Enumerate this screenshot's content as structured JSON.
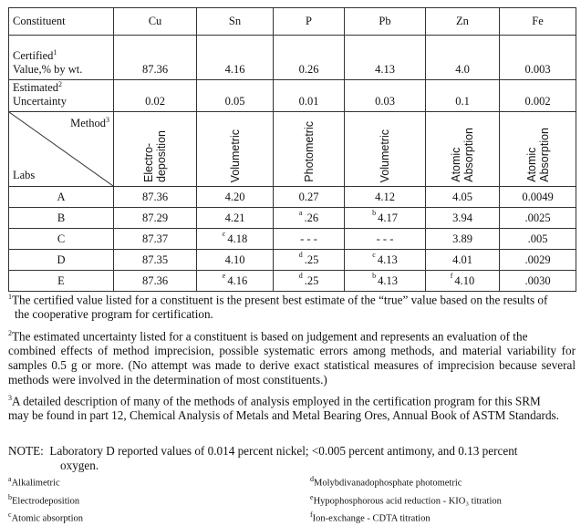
{
  "table": {
    "constituent_label": "Constituent",
    "columns": [
      "Cu",
      "Sn",
      "P",
      "Pb",
      "Zn",
      "Fe"
    ],
    "certified_label_1": "Certified",
    "certified_label_2": "Value,% by wt.",
    "certified_marker": "1",
    "certified": [
      "87.36",
      "4.16",
      "0.26",
      "4.13",
      "4.0",
      "0.003"
    ],
    "uncertainty_label_1": "Estimated",
    "uncertainty_label_2": "Uncertainty",
    "uncertainty_marker": "2",
    "uncertainty": [
      "0.02",
      "0.05",
      "0.01",
      "0.03",
      "0.1",
      "0.002"
    ],
    "method_label": "Method",
    "method_marker": "3",
    "labs_label": "Labs",
    "methods": [
      [
        "Electro-",
        "deposition"
      ],
      [
        "Volumetric"
      ],
      [
        "Photometric"
      ],
      [
        "Volumetric"
      ],
      [
        "Atomic",
        "Absorption"
      ],
      [
        "Atomic",
        "Absorption"
      ]
    ],
    "labs": [
      {
        "lab": "A",
        "values": [
          {
            "v": "87.36"
          },
          {
            "v": "4.20"
          },
          {
            "v": "0.27"
          },
          {
            "v": "4.12"
          },
          {
            "v": "4.05"
          },
          {
            "v": "0.0049"
          }
        ]
      },
      {
        "lab": "B",
        "values": [
          {
            "v": "87.29"
          },
          {
            "v": "4.21"
          },
          {
            "m": "a",
            "v": ".26"
          },
          {
            "m": "b",
            "v": "4.17"
          },
          {
            "v": "3.94"
          },
          {
            "v": ".0025"
          }
        ]
      },
      {
        "lab": "C",
        "values": [
          {
            "v": "87.37"
          },
          {
            "m": "c",
            "v": "4.18"
          },
          {
            "v": "- - -"
          },
          {
            "v": "- - -"
          },
          {
            "v": "3.89"
          },
          {
            "v": ".005"
          }
        ]
      },
      {
        "lab": "D",
        "values": [
          {
            "v": "87.35"
          },
          {
            "v": "4.10"
          },
          {
            "m": "d",
            "v": ".25"
          },
          {
            "m": "c",
            "v": "4.13"
          },
          {
            "v": "4.01"
          },
          {
            "v": ".0029"
          }
        ]
      },
      {
        "lab": "E",
        "values": [
          {
            "v": "87.36"
          },
          {
            "m": "e",
            "v": "4.16"
          },
          {
            "m": "d",
            "v": ".25"
          },
          {
            "m": "b",
            "v": "4.13"
          },
          {
            "m": "f",
            "v": "4.10"
          },
          {
            "v": ".0030"
          }
        ]
      }
    ]
  },
  "footnotes": [
    {
      "marker": "1",
      "line1": "The certified value listed for a constituent is the present best estimate of the “true” value based on the results of",
      "rest": "the cooperative program for certification."
    },
    {
      "marker": "2",
      "line1": "The estimated uncertainty listed for a constituent is based on judgement and represents an evaluation of the",
      "rest": "combined effects of method imprecision, possible systematic errors among methods, and material variability for samples 0.5 g or more. (No attempt was made to derive exact statistical measures of imprecision because several methods were involved in the determination of most constituents.)"
    },
    {
      "marker": "3",
      "line1": "A detailed description of many of the methods of analysis employed in the certification program for this SRM",
      "rest": "may be found in part 12, Chemical Analysis of Metals and Metal Bearing Ores, Annual Book of ASTM Standards."
    }
  ],
  "note": {
    "label": "NOTE:",
    "line1": "Laboratory D reported  values of  0.014 percent nickel; <0.005 percent antimony, and 0.13 percent",
    "line2": "oxygen."
  },
  "method_notes": [
    {
      "marker": "a",
      "text": "Alkalimetric"
    },
    {
      "marker": "b",
      "text": "Electrodeposition"
    },
    {
      "marker": "c",
      "text": "Atomic absorption"
    },
    {
      "marker": "d",
      "text": "Molybdivanadophosphate photometric"
    },
    {
      "marker": "e",
      "text": "Hypophosphorous acid reduction - KIO₃ titration"
    },
    {
      "marker": "f",
      "text": "Ion-exchange - CDTA titration"
    }
  ]
}
